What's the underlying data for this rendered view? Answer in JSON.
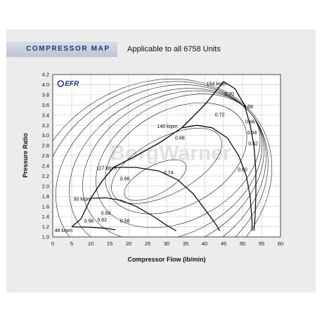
{
  "header": {
    "title": "COMPRESSOR MAP",
    "subtitle": "Applicable to all 6758 Units"
  },
  "chart_data": {
    "type": "line",
    "xlabel": "Compressor Flow (lb/min)",
    "ylabel": "Pressure Ratio",
    "xlim": [
      0,
      60
    ],
    "ylim": [
      1.0,
      4.2
    ],
    "xticks": [
      0,
      5,
      10,
      15,
      20,
      25,
      30,
      35,
      40,
      45,
      50,
      55,
      60
    ],
    "yticks": [
      1.0,
      1.2,
      1.4,
      1.6,
      1.8,
      2.0,
      2.2,
      2.4,
      2.6,
      2.8,
      3.0,
      3.2,
      3.4,
      3.6,
      3.8,
      4.0,
      4.2
    ],
    "grid": true,
    "logo": "EFR",
    "watermark": "BorgWarner",
    "surge_line": [
      [
        5.0,
        1.2
      ],
      [
        7.5,
        1.36
      ],
      [
        10.0,
        1.76
      ],
      [
        13.0,
        2.1
      ],
      [
        16.0,
        2.37
      ],
      [
        21.0,
        2.56
      ],
      [
        28.0,
        2.85
      ],
      [
        34.0,
        3.15
      ],
      [
        40.0,
        3.6
      ],
      [
        45.0,
        4.06
      ]
    ],
    "speed_lines": [
      {
        "label": "48 krpm",
        "points": [
          [
            5.0,
            1.2
          ],
          [
            10.0,
            1.19
          ],
          [
            14.0,
            1.17
          ],
          [
            16.5,
            1.14
          ]
        ]
      },
      {
        "label": "90 krpm",
        "points": [
          [
            10.0,
            1.76
          ],
          [
            14.0,
            1.77
          ],
          [
            18.0,
            1.72
          ],
          [
            22.0,
            1.6
          ],
          [
            26.0,
            1.43
          ],
          [
            30.0,
            1.23
          ],
          [
            32.5,
            1.12
          ]
        ]
      },
      {
        "label": "117 krpm",
        "points": [
          [
            16.0,
            2.37
          ],
          [
            22.0,
            2.37
          ],
          [
            28.0,
            2.3
          ],
          [
            33.0,
            2.12
          ],
          [
            37.0,
            1.85
          ],
          [
            40.0,
            1.55
          ],
          [
            42.5,
            1.3
          ],
          [
            44.0,
            1.12
          ]
        ]
      },
      {
        "label": "140 krpm",
        "points": [
          [
            34.0,
            3.15
          ],
          [
            38.0,
            3.2
          ],
          [
            42.0,
            3.15
          ],
          [
            46.0,
            2.95
          ],
          [
            49.0,
            2.6
          ],
          [
            51.0,
            2.2
          ],
          [
            52.0,
            1.8
          ],
          [
            52.5,
            1.3
          ],
          [
            52.5,
            1.12
          ]
        ]
      },
      {
        "label": "154 krpm",
        "points": [
          [
            45.0,
            4.06
          ],
          [
            48.0,
            3.92
          ],
          [
            50.5,
            3.6
          ],
          [
            52.0,
            3.2
          ],
          [
            53.0,
            2.8
          ],
          [
            53.5,
            2.3
          ],
          [
            53.5,
            1.8
          ],
          [
            53.3,
            1.4
          ],
          [
            53.0,
            1.12
          ]
        ]
      }
    ],
    "efficiency_islands": [
      {
        "label": "0.74",
        "center": [
          27.0,
          2.12
        ],
        "rx": 9.0,
        "ry": 0.28
      },
      {
        "label": "0.72",
        "center": [
          30.0,
          2.4
        ],
        "rx": 16.0,
        "ry": 0.55
      },
      {
        "label": "0.70",
        "center": [
          32.5,
          2.55
        ],
        "rx": 20.0,
        "ry": 0.95
      },
      {
        "label": "0.68",
        "center": [
          33.0,
          2.5
        ],
        "rx": 23.0,
        "ry": 1.18
      },
      {
        "label": "0.66",
        "center": [
          31.5,
          2.4
        ],
        "rx": 25.0,
        "ry": 1.35
      },
      {
        "label": "0.64",
        "center": [
          30.0,
          2.3
        ],
        "rx": 27.0,
        "ry": 1.5
      },
      {
        "label": "0.62",
        "center": [
          28.5,
          2.2
        ],
        "rx": 29.0,
        "ry": 1.68
      },
      {
        "label": "0.60",
        "center": [
          27.0,
          2.1
        ],
        "rx": 31.0,
        "ry": 1.85
      },
      {
        "label": "0.58",
        "center": [
          26.0,
          2.0
        ],
        "rx": 33.0,
        "ry": 2.0
      }
    ],
    "efficiency_labels": [
      {
        "text": "0.70",
        "x": 46.5,
        "y": 3.82
      },
      {
        "text": "0.68",
        "x": 51.5,
        "y": 3.57
      },
      {
        "text": "0.72",
        "x": 44.0,
        "y": 3.41
      },
      {
        "text": "0.66",
        "x": 52.0,
        "y": 3.27
      },
      {
        "text": "0.64",
        "x": 52.5,
        "y": 3.06
      },
      {
        "text": "0.68",
        "x": 33.5,
        "y": 2.95
      },
      {
        "text": "0.62",
        "x": 52.8,
        "y": 2.84
      },
      {
        "text": "0.74",
        "x": 30.5,
        "y": 2.27
      },
      {
        "text": "0.60",
        "x": 50.0,
        "y": 2.33
      },
      {
        "text": "0.66",
        "x": 19.0,
        "y": 2.15
      },
      {
        "text": "0.64",
        "x": 14.0,
        "y": 1.47
      },
      {
        "text": "0.62",
        "x": 13.0,
        "y": 1.34
      },
      {
        "text": "0.58",
        "x": 9.5,
        "y": 1.32
      },
      {
        "text": "0.58",
        "x": 19.0,
        "y": 1.32
      }
    ],
    "speed_labels": [
      {
        "text": "154 krpm",
        "x": 40.5,
        "y": 4.02
      },
      {
        "text": "140 krpm",
        "x": 27.5,
        "y": 3.18
      },
      {
        "text": "117 krpm",
        "x": 11.5,
        "y": 2.36
      },
      {
        "text": "90 krpm",
        "x": 5.5,
        "y": 1.75
      },
      {
        "text": "48 krpm",
        "x": 0.5,
        "y": 1.13
      }
    ]
  }
}
